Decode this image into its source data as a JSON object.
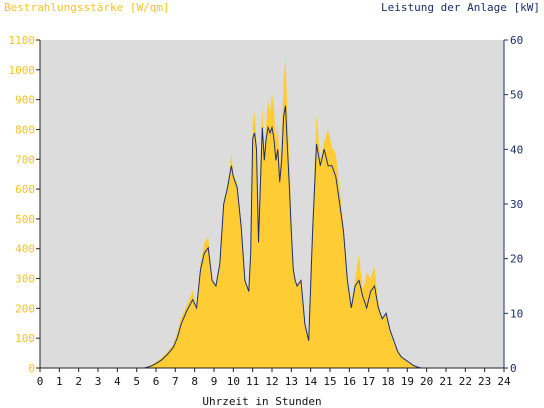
{
  "chart_data": {
    "type": "area",
    "ylabel_left": "Bestrahlungsstärke [W/qm]",
    "ylabel_right": "Leistung der Anlage [kW]",
    "xlabel": "Uhrzeit in Stunden",
    "xlim": [
      0,
      24
    ],
    "ylim_left": [
      0,
      1100
    ],
    "ylim_right": [
      0,
      60
    ],
    "x_ticks": [
      "0",
      "1",
      "2",
      "3",
      "4",
      "5",
      "6",
      "7",
      "8",
      "9",
      "10",
      "11",
      "12",
      "13",
      "14",
      "15",
      "16",
      "17",
      "18",
      "19",
      "20",
      "21",
      "22",
      "23",
      "24"
    ],
    "y_left_ticks": [
      "0",
      "100",
      "200",
      "300",
      "400",
      "500",
      "600",
      "700",
      "800",
      "900",
      "1000",
      "1100"
    ],
    "y_right_ticks": [
      "0",
      "10",
      "20",
      "30",
      "40",
      "50",
      "60"
    ],
    "grid": false,
    "colors": {
      "irradiance": "#ffcc33",
      "power": "#1c2f6b",
      "plot_background": "#dcdcdc",
      "left_axis": "#f5c228",
      "right_axis": "#1c2f6b"
    },
    "series": [
      {
        "axis": "left",
        "x": [
          0,
          5.4,
          5.7,
          6.0,
          6.3,
          6.6,
          6.9,
          7.1,
          7.3,
          7.6,
          7.9,
          8.1,
          8.3,
          8.5,
          8.7,
          8.9,
          9.1,
          9.3,
          9.5,
          9.7,
          9.9,
          10.0,
          10.2,
          10.4,
          10.6,
          10.8,
          10.9,
          11.0,
          11.1,
          11.2,
          11.3,
          11.5,
          11.6,
          11.7,
          11.8,
          11.9,
          12.0,
          12.1,
          12.2,
          12.3,
          12.4,
          12.5,
          12.6,
          12.7,
          12.8,
          12.9,
          13.0,
          13.1,
          13.2,
          13.3,
          13.5,
          13.7,
          13.9,
          14.1,
          14.3,
          14.5,
          14.7,
          14.9,
          15.1,
          15.3,
          15.5,
          15.7,
          15.9,
          16.1,
          16.3,
          16.5,
          16.7,
          16.9,
          17.1,
          17.3,
          17.5,
          17.7,
          17.9,
          18.1,
          18.3,
          18.5,
          18.7,
          18.9,
          19.1,
          19.3,
          19.5,
          19.7,
          19.9,
          20.2,
          24
        ],
        "values": [
          0,
          0,
          8,
          20,
          35,
          55,
          80,
          120,
          170,
          210,
          260,
          200,
          350,
          420,
          440,
          300,
          280,
          350,
          560,
          600,
          720,
          650,
          620,
          480,
          300,
          260,
          400,
          820,
          860,
          760,
          500,
          880,
          720,
          820,
          900,
          860,
          920,
          880,
          760,
          820,
          680,
          780,
          960,
          1050,
          840,
          700,
          500,
          330,
          290,
          280,
          300,
          140,
          100,
          480,
          850,
          700,
          760,
          800,
          740,
          720,
          600,
          480,
          280,
          200,
          300,
          380,
          260,
          320,
          300,
          340,
          220,
          160,
          190,
          120,
          80,
          60,
          40,
          25,
          15,
          8,
          3,
          0,
          0,
          0,
          0
        ]
      },
      {
        "axis": "right",
        "x": [
          0,
          5.4,
          5.7,
          6.0,
          6.3,
          6.6,
          6.9,
          7.1,
          7.3,
          7.6,
          7.9,
          8.1,
          8.3,
          8.5,
          8.7,
          8.9,
          9.1,
          9.3,
          9.5,
          9.7,
          9.9,
          10.0,
          10.2,
          10.4,
          10.6,
          10.8,
          10.9,
          11.0,
          11.1,
          11.2,
          11.3,
          11.5,
          11.6,
          11.7,
          11.8,
          11.9,
          12.0,
          12.1,
          12.2,
          12.3,
          12.4,
          12.5,
          12.6,
          12.7,
          12.8,
          12.9,
          13.0,
          13.1,
          13.2,
          13.3,
          13.5,
          13.7,
          13.9,
          14.1,
          14.3,
          14.5,
          14.7,
          14.9,
          15.1,
          15.3,
          15.5,
          15.7,
          15.9,
          16.1,
          16.3,
          16.5,
          16.7,
          16.9,
          17.1,
          17.3,
          17.5,
          17.7,
          17.9,
          18.1,
          18.3,
          18.5,
          18.7,
          18.9,
          19.1,
          19.3,
          19.5,
          19.7,
          19.9,
          20.2,
          24
        ],
        "values": [
          0,
          0,
          0.3,
          0.8,
          1.5,
          2.5,
          3.8,
          5.5,
          8,
          10.5,
          12.5,
          11,
          18,
          21,
          22,
          16,
          15,
          19,
          30,
          33,
          37,
          35,
          33,
          26,
          16,
          14,
          21,
          42,
          43,
          40,
          23,
          44,
          38,
          42,
          44,
          43,
          44,
          42,
          38,
          40,
          34,
          38,
          46,
          48,
          40,
          33,
          25,
          18,
          16,
          15,
          16,
          8,
          5,
          25,
          41,
          37,
          40,
          37,
          37,
          35,
          30,
          25,
          16,
          11,
          15,
          16,
          13,
          11,
          14,
          15,
          11,
          9,
          10,
          7,
          5,
          3,
          2,
          1.5,
          1,
          0.5,
          0.2,
          0,
          0,
          0,
          0
        ]
      }
    ]
  }
}
